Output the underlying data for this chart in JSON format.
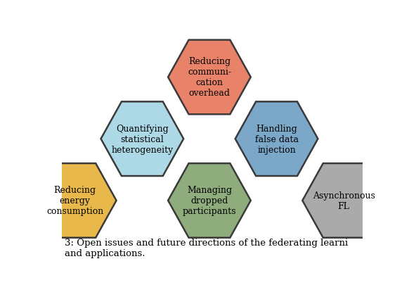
{
  "hexagons": [
    {
      "label": "Reducing\ncommuni-\ncation\noverhead",
      "color": "#E8836A",
      "edge_color": "#3A3A3A",
      "row": 0,
      "col": 1
    },
    {
      "label": "Quantifying\nstatistical\nheterogeneity",
      "color": "#ADD8E6",
      "edge_color": "#3A3A3A",
      "row": 1,
      "col": 0
    },
    {
      "label": "Handling\nfalse data\ninjection",
      "color": "#7BA7C9",
      "edge_color": "#3A3A3A",
      "row": 1,
      "col": 1
    },
    {
      "label": "Reducing\nenergy\nconsumption",
      "color": "#E8B84B",
      "edge_color": "#3A3A3A",
      "row": 2,
      "col": 0
    },
    {
      "label": "Managing\ndropped\nparticipants",
      "color": "#8FAD7C",
      "edge_color": "#3A3A3A",
      "row": 2,
      "col": 1
    },
    {
      "label": "Asynchronous\nFL",
      "color": "#AAAAAA",
      "edge_color": "#3A3A3A",
      "row": 2,
      "col": 2
    }
  ],
  "caption_line1": "3: Open issues and future directions of the federating learni",
  "caption_line2": "and applications.",
  "caption_fontsize": 9.5,
  "label_fontsize": 9,
  "background_color": "#ffffff",
  "edge_linewidth": 1.8
}
